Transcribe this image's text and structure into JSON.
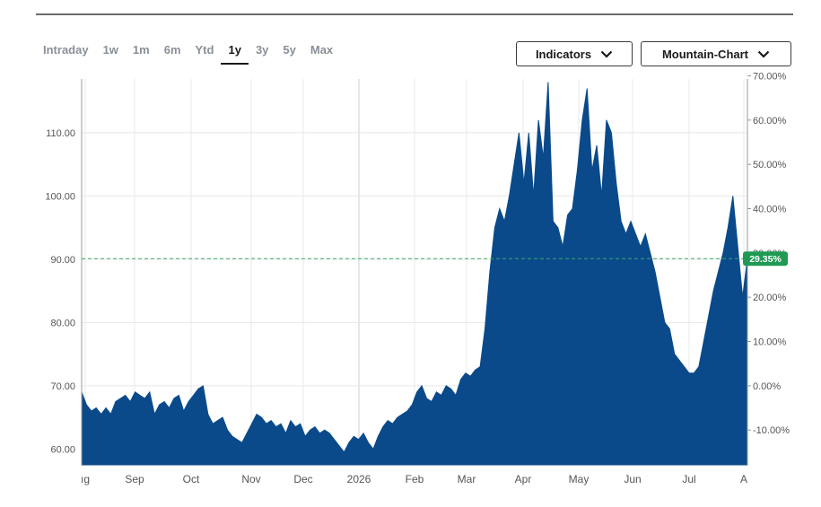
{
  "toolbar": {
    "ranges": [
      "Intraday",
      "1w",
      "1m",
      "6m",
      "Ytd",
      "1y",
      "3y",
      "5y",
      "Max"
    ],
    "active_range": "1y",
    "indicators_label": "Indicators",
    "chart_type_label": "Mountain-Chart"
  },
  "colors": {
    "fill": "#0a4a8a",
    "badge": "#1f9a55",
    "ref_line": "#3da86a",
    "grid": "#e8e8e8"
  },
  "chart_data": {
    "type": "area",
    "x_tick_labels": [
      "ıg",
      "Sep",
      "Oct",
      "Nov",
      "Dec",
      "2026",
      "Feb",
      "Mar",
      "Apr",
      "May",
      "Jun",
      "Jul",
      "A"
    ],
    "y_left_ticks": [
      "60.00",
      "70.00",
      "80.00",
      "90.00",
      "100.00",
      "110.00"
    ],
    "y_left_values": [
      60,
      70,
      80,
      90,
      100,
      110
    ],
    "y_right_ticks": [
      "-10.00%",
      "0.00%",
      "10.00%",
      "20.00%",
      "30.00%",
      "40.00%",
      "50.00%",
      "60.00%",
      "70.00%"
    ],
    "y_right_values": [
      -10,
      0,
      10,
      20,
      30,
      40,
      50,
      60,
      70
    ],
    "ylim": [
      57.5,
      118.5
    ],
    "reference_pct": 0,
    "current_value": 90.1,
    "current_badge": "29.35%",
    "series": [
      {
        "values": [
          69.0,
          67.0,
          66.0,
          66.5,
          65.5,
          66.5,
          65.5,
          67.5,
          68.0,
          68.5,
          67.5,
          69.0,
          68.5,
          68.0,
          69.0,
          65.5,
          67.0,
          67.5,
          66.5,
          68.0,
          68.5,
          66.0,
          67.5,
          68.5,
          69.5,
          70.0,
          65.5,
          64.0,
          64.5,
          65.0,
          63.0,
          62.0,
          61.5,
          61.0,
          62.5,
          64.0,
          65.5,
          65.0,
          64.0,
          64.5,
          63.5,
          64.0,
          62.5,
          64.5,
          63.5,
          64.0,
          62.0,
          63.0,
          63.5,
          62.5,
          63.0,
          62.5,
          61.5,
          60.5,
          59.5,
          61.0,
          62.0,
          61.5,
          62.5,
          61.0,
          60.0,
          62.0,
          63.5,
          64.5,
          64.0,
          65.0,
          65.5,
          66.0,
          67.0,
          69.0,
          70.0,
          68.0,
          67.5,
          69.0,
          68.5,
          70.0,
          69.5,
          68.5,
          71.0,
          72.0,
          71.5,
          72.5,
          73.0,
          79.0,
          88.0,
          95.0,
          98.0,
          96.0,
          100.0,
          105.0,
          110.0,
          102.0,
          110.0,
          100.0,
          112.0,
          106.0,
          118.0,
          96.0,
          95.0,
          92.0,
          97.0,
          98.0,
          104.0,
          112.0,
          117.0,
          104.0,
          108.0,
          100.0,
          112.0,
          110.0,
          102.0,
          96.0,
          94.0,
          96.0,
          94.0,
          92.0,
          94.0,
          91.0,
          88.0,
          84.0,
          80.0,
          79.0,
          75.0,
          74.0,
          73.0,
          72.0,
          72.0,
          73.0,
          77.0,
          81.0,
          85.0,
          88.0,
          91.0,
          95.0,
          100.0,
          92.0,
          84.0,
          90.1
        ]
      }
    ]
  }
}
